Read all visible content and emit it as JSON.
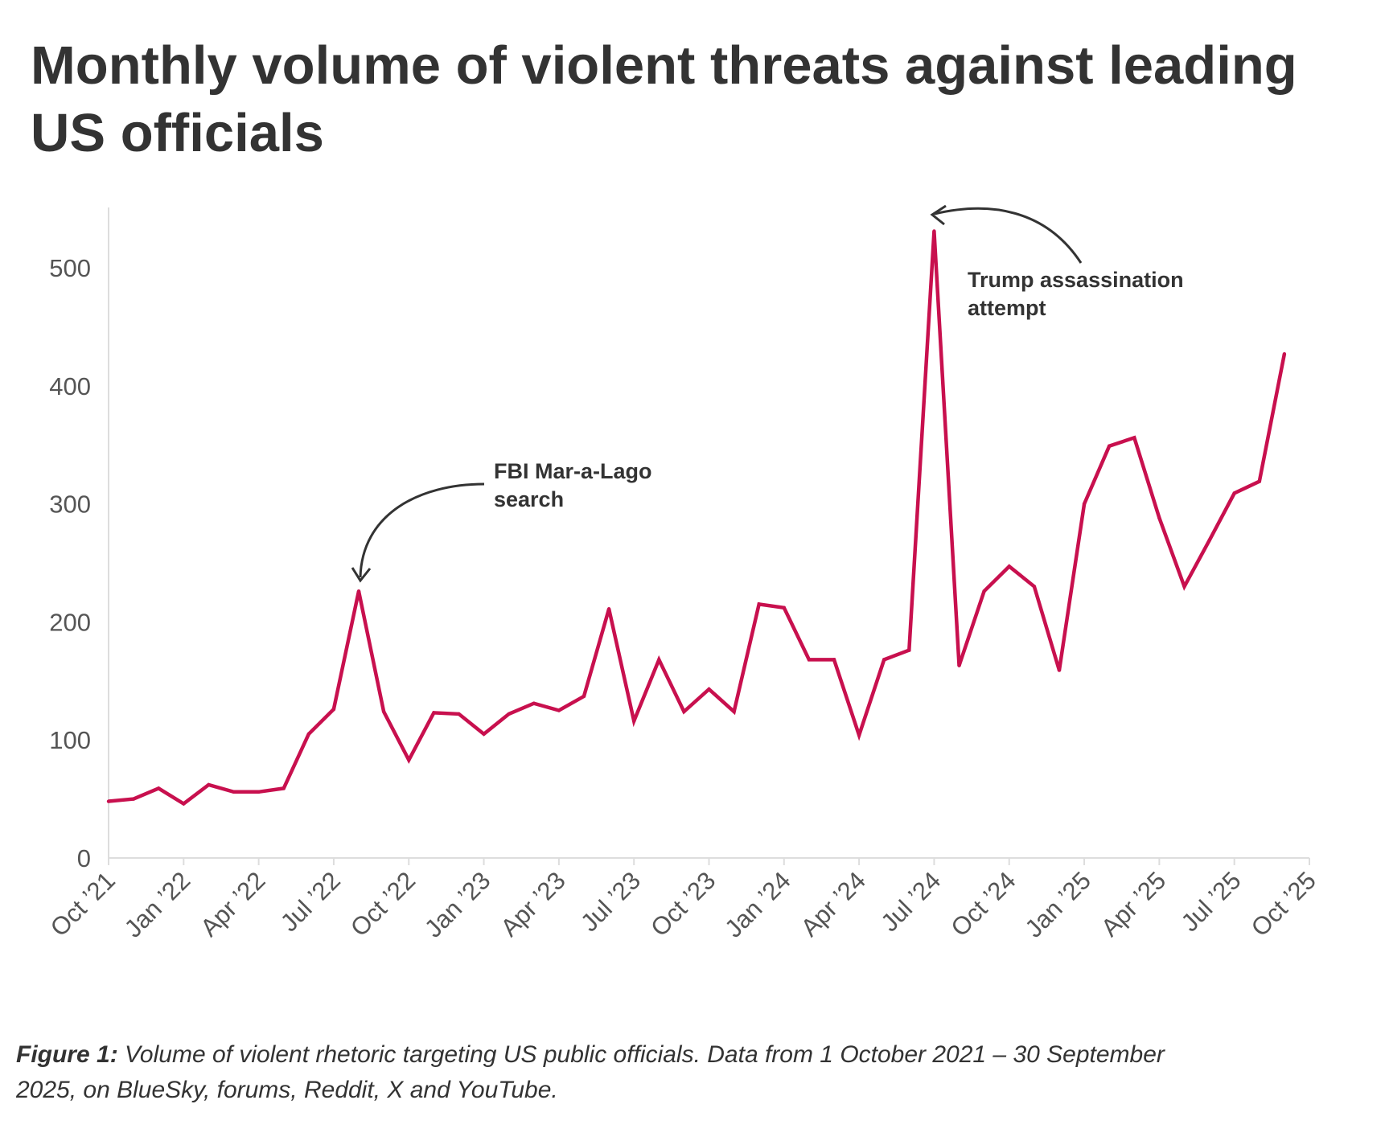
{
  "title": "Monthly volume of violent threats against leading US officials",
  "caption": {
    "label": "Figure 1:",
    "text": " Volume of violent rhetoric targeting US public officials. Data from 1 October 2021 – 30 September 2025, on BlueSky, forums, Reddit, X and YouTube."
  },
  "chart_data": {
    "type": "line",
    "title": "Monthly volume of violent threats against leading US officials",
    "xlabel": "",
    "ylabel": "",
    "ylim": [
      0,
      550
    ],
    "yticks": [
      0,
      100,
      200,
      300,
      400,
      500
    ],
    "xtick_labels": [
      "Oct ’21",
      "Jan ’22",
      "Apr ’22",
      "Jul ’22",
      "Oct ’22",
      "Jan ’23",
      "Apr ’23",
      "Jul ’23",
      "Oct ’23",
      "Jan ’24",
      "Apr ’24",
      "Jul ’24",
      "Oct ’24",
      "Jan ’25",
      "Apr ’25",
      "Jul ’25",
      "Oct ’25"
    ],
    "grid": false,
    "color": "#c8104e",
    "series": [
      {
        "name": "Monthly volume",
        "start": "2021-10",
        "values": [
          48,
          50,
          59,
          46,
          62,
          56,
          56,
          59,
          105,
          126,
          226,
          124,
          83,
          123,
          122,
          105,
          122,
          131,
          125,
          137,
          211,
          116,
          168,
          124,
          143,
          124,
          215,
          212,
          168,
          168,
          104,
          168,
          176,
          531,
          163,
          226,
          247,
          230,
          159,
          300,
          349,
          356,
          288,
          230,
          269,
          309,
          319,
          427
        ]
      }
    ],
    "annotations": [
      {
        "text_lines": [
          "FBI Mar-a-Lago",
          "search"
        ],
        "month_index": 10
      },
      {
        "text_lines": [
          "Trump assassination",
          "attempt"
        ],
        "month_index": 33
      }
    ]
  }
}
